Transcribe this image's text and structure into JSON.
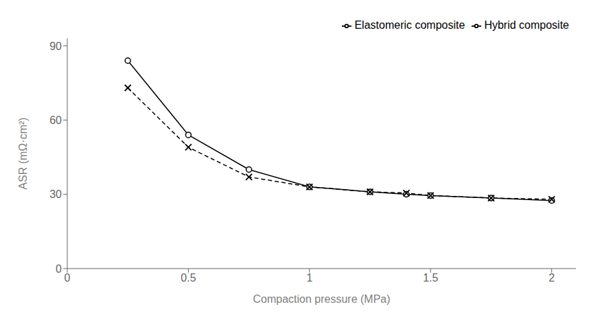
{
  "chart_data": {
    "type": "line",
    "x": [
      0.25,
      0.5,
      0.75,
      1.0,
      1.25,
      1.4,
      1.5,
      1.75,
      2.0
    ],
    "series": [
      {
        "name": "Hybrid composite",
        "color": "#000000",
        "line_style": "solid",
        "marker": "circle",
        "values": [
          84,
          54,
          40,
          33,
          31,
          30,
          29.5,
          28.5,
          27.5
        ]
      },
      {
        "name": "Elastomeric composite",
        "color": "#000000",
        "line_style": "dashed",
        "marker": "x",
        "values": [
          73,
          49,
          37,
          33,
          31,
          30.5,
          29.5,
          28.5,
          28
        ]
      }
    ],
    "x_label": "Compaction pressure (MPa)",
    "y_label": "ASR (mΩ·cm²)",
    "xlim": [
      0,
      2.1
    ],
    "ylim": [
      0,
      93
    ],
    "xticks": [
      0,
      0.5,
      1,
      1.5,
      2
    ],
    "yticks": [
      0,
      30,
      60,
      90
    ],
    "grid": false,
    "legend": "upper right"
  }
}
